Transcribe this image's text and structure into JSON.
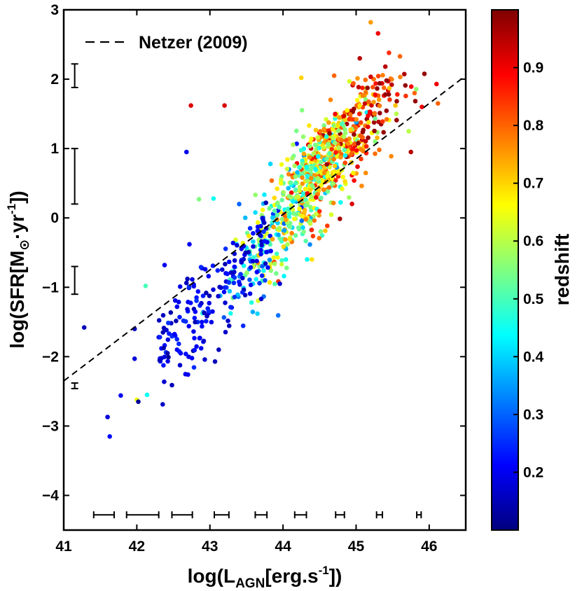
{
  "chart_data": {
    "type": "scatter",
    "xlabel_prefix": "log(L",
    "xlabel_sub": "AGN",
    "xlabel_main": "[erg.s",
    "xlabel_sup": "-1",
    "xlabel_suffix": "])",
    "ylabel_prefix": "log(SFR[M",
    "ylabel_sub": "⊙",
    "ylabel_main": "·yr",
    "ylabel_sup": "-1",
    "ylabel_suffix": "])",
    "xlim": [
      41,
      46.5
    ],
    "ylim": [
      -4.5,
      3
    ],
    "xticks": [
      41,
      42,
      43,
      44,
      45,
      46
    ],
    "xtick_labels": [
      "41",
      "42",
      "43",
      "44",
      "45",
      "46"
    ],
    "yticks": [
      -4,
      -3,
      -2,
      -1,
      0,
      1,
      2,
      3
    ],
    "ytick_labels": [
      "−4",
      "−3",
      "−2",
      "−1",
      "0",
      "1",
      "2",
      "3"
    ],
    "legend": {
      "label": "Netzer (2009)",
      "position": "top-left"
    },
    "reference_line": {
      "name": "Netzer (2009)",
      "x": [
        41,
        46.5
      ],
      "y": [
        -2.35,
        2.05
      ]
    },
    "colorbar": {
      "label": "redshift",
      "range": [
        0.1,
        1.0
      ],
      "ticks": [
        0.2,
        0.3,
        0.4,
        0.5,
        0.6,
        0.7,
        0.8,
        0.9
      ],
      "tick_labels": [
        "0.2",
        "0.3",
        "0.4",
        "0.5",
        "0.6",
        "0.7",
        "0.8",
        "0.9"
      ],
      "colormap": [
        "#00007f",
        "#0000ff",
        "#007fff",
        "#00ffff",
        "#7fff7f",
        "#ffff00",
        "#ff7f00",
        "#ff0000",
        "#7f0000"
      ]
    },
    "y_error_bars": [
      {
        "x": 41.15,
        "y": 2.05,
        "err": 0.17
      },
      {
        "x": 41.15,
        "y": 0.6,
        "err": 0.4
      },
      {
        "x": 41.15,
        "y": -0.9,
        "err": 0.2
      },
      {
        "x": 41.15,
        "y": -2.42,
        "err": 0.04
      }
    ],
    "x_error_bars": [
      {
        "x": 41.55,
        "y": -4.28,
        "err": 0.14
      },
      {
        "x": 42.08,
        "y": -4.28,
        "err": 0.22
      },
      {
        "x": 42.62,
        "y": -4.28,
        "err": 0.14
      },
      {
        "x": 43.16,
        "y": -4.28,
        "err": 0.1
      },
      {
        "x": 43.7,
        "y": -4.28,
        "err": 0.08
      },
      {
        "x": 44.24,
        "y": -4.28,
        "err": 0.08
      },
      {
        "x": 44.78,
        "y": -4.28,
        "err": 0.06
      },
      {
        "x": 45.32,
        "y": -4.28,
        "err": 0.04
      },
      {
        "x": 45.86,
        "y": -4.28,
        "err": 0.03
      }
    ],
    "points": [
      {
        "x": 41.28,
        "y": -1.58,
        "z": 0.15
      },
      {
        "x": 41.6,
        "y": -2.87,
        "z": 0.18
      },
      {
        "x": 41.63,
        "y": -3.15,
        "z": 0.22
      },
      {
        "x": 41.78,
        "y": -2.56,
        "z": 0.2
      },
      {
        "x": 41.97,
        "y": -2.03,
        "z": 0.18
      },
      {
        "x": 41.97,
        "y": -1.6,
        "z": 0.16
      },
      {
        "x": 42.0,
        "y": -2.62,
        "z": 0.65
      },
      {
        "x": 42.02,
        "y": -2.65,
        "z": 0.12
      },
      {
        "x": 42.12,
        "y": -0.98,
        "z": 0.5
      },
      {
        "x": 42.14,
        "y": -2.55,
        "z": 0.45
      },
      {
        "x": 42.48,
        "y": -2.41,
        "z": 0.15
      },
      {
        "x": 42.38,
        "y": -0.68,
        "z": 0.2
      },
      {
        "x": 42.68,
        "y": 0.95,
        "z": 0.2
      },
      {
        "x": 42.72,
        "y": -0.38,
        "z": 0.2
      },
      {
        "x": 42.74,
        "y": 1.62,
        "z": 0.92
      },
      {
        "x": 43.2,
        "y": 1.62,
        "z": 0.92
      },
      {
        "x": 42.85,
        "y": 0.27,
        "z": 0.55
      },
      {
        "x": 43.05,
        "y": 0.28,
        "z": 0.45
      },
      {
        "x": 43.07,
        "y": -2.07,
        "z": 0.15
      },
      {
        "x": 43.12,
        "y": -1.9,
        "z": 0.15
      },
      {
        "x": 42.88,
        "y": -1.88,
        "z": 0.2
      },
      {
        "x": 42.6,
        "y": -1.95,
        "z": 0.2
      },
      {
        "x": 42.55,
        "y": -1.9,
        "z": 0.2
      },
      {
        "x": 42.3,
        "y": -1.72,
        "z": 0.18
      },
      {
        "x": 43.65,
        "y": -1.38,
        "z": 0.4
      },
      {
        "x": 43.4,
        "y": 0.2,
        "z": 0.3
      },
      {
        "x": 43.55,
        "y": -0.15,
        "z": 0.25
      },
      {
        "x": 45.2,
        "y": 2.82,
        "z": 0.75
      },
      {
        "x": 45.3,
        "y": 2.66,
        "z": 0.9
      },
      {
        "x": 45.45,
        "y": 2.38,
        "z": 0.85
      },
      {
        "x": 45.4,
        "y": 2.18,
        "z": 0.95
      },
      {
        "x": 45.6,
        "y": 2.33,
        "z": 0.8
      },
      {
        "x": 46.1,
        "y": 1.93,
        "z": 0.9
      },
      {
        "x": 46.12,
        "y": 1.65,
        "z": 0.8
      },
      {
        "x": 45.05,
        "y": 2.3,
        "z": 0.95
      },
      {
        "x": 44.25,
        "y": 2.02,
        "z": 0.7
      },
      {
        "x": 44.7,
        "y": 2.05,
        "z": 0.8
      },
      {
        "x": 45.72,
        "y": 1.25,
        "z": 0.6
      },
      {
        "x": 45.75,
        "y": 0.95,
        "z": 0.95
      },
      {
        "x": 45.55,
        "y": 1.5,
        "z": 0.6
      },
      {
        "x": 45.8,
        "y": 1.8,
        "z": 0.8
      },
      {
        "x": 45.9,
        "y": 1.6,
        "z": 0.9
      }
    ]
  }
}
